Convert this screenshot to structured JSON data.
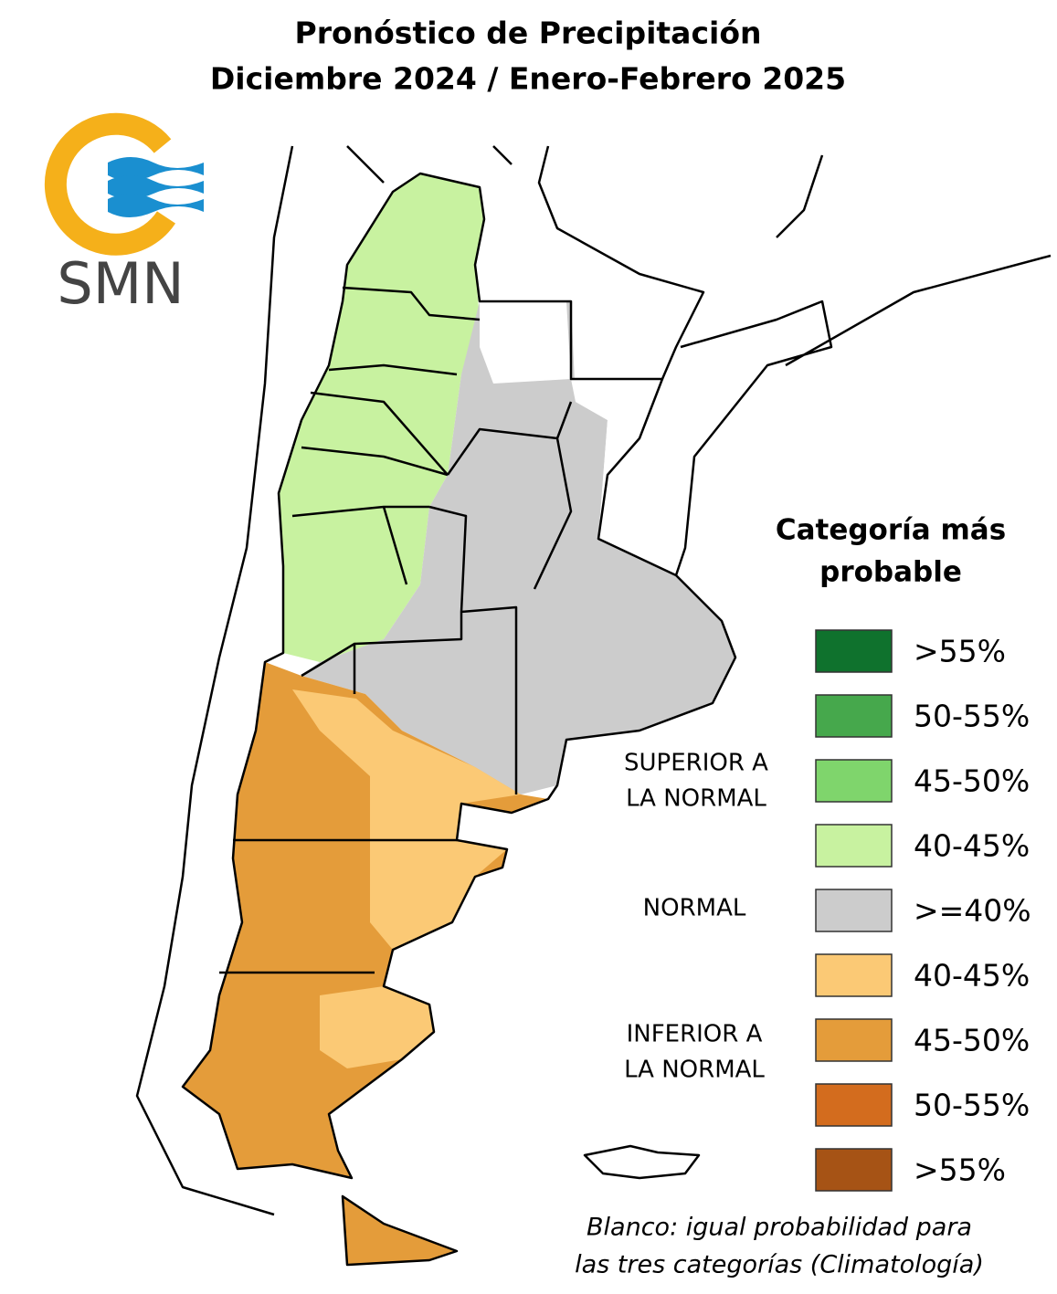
{
  "header": {
    "title_lines": [
      "Pronóstico de Precipitación",
      "Diciembre 2024 / Enero-Febrero 2025"
    ]
  },
  "logo": {
    "text": "SMN"
  },
  "legend": {
    "title_lines": [
      "Categoría más",
      "probable"
    ],
    "items": [
      {
        "label": ">55%",
        "color": "#0f722d"
      },
      {
        "label": "50-55%",
        "color": "#46a84c"
      },
      {
        "label": "45-50%",
        "color": "#7fd56c"
      },
      {
        "label": "40-45%",
        "color": "#c8f2a0"
      },
      {
        "label": ">=40%",
        "color": "#cccccc"
      },
      {
        "label": "40-45%",
        "color": "#fbc975"
      },
      {
        "label": "45-50%",
        "color": "#e49c3a"
      },
      {
        "label": "50-55%",
        "color": "#d36c1e"
      },
      {
        "label": ">55%",
        "color": "#a65315"
      }
    ],
    "groups": [
      {
        "lines": [
          "SUPERIOR A",
          "LA NORMAL"
        ]
      },
      {
        "lines": [
          "NORMAL"
        ]
      },
      {
        "lines": [
          "INFERIOR A",
          "LA NORMAL"
        ]
      }
    ]
  },
  "footnote": {
    "lines": [
      "Blanco: igual probabilidad para",
      "las tres categorías (Climatología)"
    ]
  }
}
